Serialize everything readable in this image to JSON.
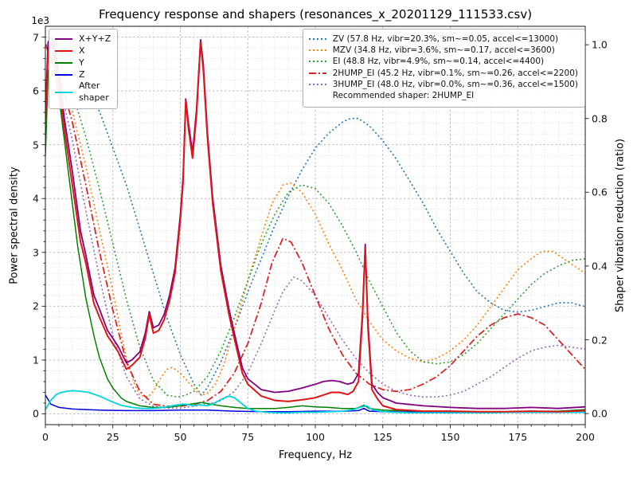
{
  "title": "Frequency response and shapers (resonances_x_20201129_111533.csv)",
  "axes": {
    "x": {
      "label": "Frequency, Hz",
      "min": 0,
      "max": 200,
      "major_ticks": [
        0,
        25,
        50,
        75,
        100,
        125,
        150,
        175,
        200
      ],
      "minor_step": 5
    },
    "y_left": {
      "label": "Power spectral density",
      "offset_text": "1e3",
      "min": -0.2,
      "max": 7.2,
      "major_ticks": [
        "0",
        "1",
        "2",
        "3",
        "4",
        "5",
        "6",
        "7"
      ],
      "minor_step": 0.2
    },
    "y_right": {
      "label": "Shaper vibration reduction (ratio)",
      "min": -0.03,
      "max": 1.05,
      "major_ticks": [
        "0.0",
        "0.2",
        "0.4",
        "0.6",
        "0.8",
        "1.0"
      ]
    }
  },
  "legend_psd": {
    "items": [
      {
        "label": "X+Y+Z",
        "color": "#800080",
        "style": "solid"
      },
      {
        "label": "X",
        "color": "#e01515",
        "style": "solid"
      },
      {
        "label": "Y",
        "color": "#008000",
        "style": "solid"
      },
      {
        "label": "Z",
        "color": "#0000e0",
        "style": "solid"
      },
      {
        "label": "After\nshaper",
        "color": "#00d4dc",
        "style": "solid"
      }
    ]
  },
  "legend_shapers": {
    "items": [
      {
        "label": "ZV (57.8 Hz, vibr=20.3%, sm~=0.05, accel<=13000)",
        "color": "#1f77b4",
        "style": "dotted"
      },
      {
        "label": "MZV (34.8 Hz, vibr=3.6%, sm~=0.17, accel<=3600)",
        "color": "#ff7f0e",
        "style": "dotted"
      },
      {
        "label": "EI (48.8 Hz, vibr=4.9%, sm~=0.14, accel<=4400)",
        "color": "#2ca02c",
        "style": "dotted"
      },
      {
        "label": "2HUMP_EI (45.2 Hz, vibr=0.1%, sm~=0.26, accel<=2200)",
        "color": "#d62728",
        "style": "dashdot"
      },
      {
        "label": "3HUMP_EI (48.0 Hz, vibr=0.0%, sm~=0.36, accel<=1500)",
        "color": "#9467bd",
        "style": "dotted"
      }
    ],
    "note": "Recommended shaper: 2HUMP_EI"
  },
  "chart_data": {
    "type": "line",
    "title": "Frequency response and shapers (resonances_x_20201129_111533.csv)",
    "xlabel": "Frequency, Hz",
    "ylabel_left": "Power spectral density (1e3)",
    "ylabel_right": "Shaper vibration reduction (ratio)",
    "xlim": [
      0,
      200
    ],
    "ylim_left": [
      -0.2,
      7.2
    ],
    "ylim_right": [
      -0.03,
      1.05
    ],
    "grid": "major+minor",
    "series": [
      {
        "name": "3HUMP_EI",
        "axis": "right",
        "color": "#9467bd",
        "style": "dotted",
        "width": 1.6,
        "x": [
          0,
          5,
          10,
          15,
          20,
          25,
          30,
          35,
          40,
          45,
          50,
          55,
          60,
          65,
          70,
          75,
          80,
          85,
          88,
          92,
          95,
          100,
          105,
          110,
          115,
          120,
          125,
          130,
          135,
          140,
          145,
          150,
          155,
          160,
          165,
          170,
          175,
          180,
          185,
          190,
          195,
          200
        ],
        "y": [
          1.0,
          0.9,
          0.74,
          0.55,
          0.37,
          0.21,
          0.1,
          0.04,
          0.02,
          0.015,
          0.015,
          0.02,
          0.025,
          0.035,
          0.06,
          0.11,
          0.19,
          0.28,
          0.33,
          0.37,
          0.36,
          0.32,
          0.26,
          0.2,
          0.15,
          0.11,
          0.08,
          0.06,
          0.05,
          0.045,
          0.045,
          0.05,
          0.06,
          0.08,
          0.1,
          0.125,
          0.15,
          0.17,
          0.18,
          0.185,
          0.18,
          0.175
        ]
      },
      {
        "name": "ZV",
        "axis": "right",
        "color": "#1f77b4",
        "style": "dotted",
        "width": 1.6,
        "x": [
          0,
          5,
          10,
          15,
          20,
          25,
          30,
          35,
          40,
          45,
          50,
          55,
          57.8,
          60,
          65,
          70,
          75,
          80,
          85,
          90,
          95,
          100,
          105,
          110,
          113,
          116,
          120,
          125,
          130,
          135,
          140,
          145,
          150,
          155,
          160,
          165,
          170,
          175,
          180,
          185,
          190,
          195,
          200
        ],
        "y": [
          1.0,
          0.99,
          0.95,
          0.89,
          0.82,
          0.72,
          0.62,
          0.5,
          0.38,
          0.26,
          0.16,
          0.08,
          0.05,
          0.07,
          0.14,
          0.23,
          0.33,
          0.42,
          0.51,
          0.59,
          0.66,
          0.72,
          0.76,
          0.79,
          0.8,
          0.8,
          0.78,
          0.74,
          0.69,
          0.63,
          0.57,
          0.5,
          0.44,
          0.38,
          0.33,
          0.3,
          0.28,
          0.275,
          0.28,
          0.29,
          0.3,
          0.3,
          0.29
        ]
      },
      {
        "name": "MZV",
        "axis": "right",
        "color": "#ff7f0e",
        "style": "dotted",
        "width": 1.6,
        "x": [
          0,
          5,
          10,
          15,
          20,
          25,
          28,
          30,
          33,
          35,
          38,
          40,
          43,
          45,
          47,
          50,
          53,
          56,
          58,
          60,
          63,
          66,
          70,
          75,
          80,
          84,
          88,
          91,
          95,
          100,
          105,
          110,
          115,
          120,
          125,
          130,
          135,
          140,
          145,
          150,
          155,
          160,
          165,
          170,
          175,
          180,
          184,
          188,
          192,
          196,
          200
        ],
        "y": [
          1.0,
          0.93,
          0.82,
          0.67,
          0.5,
          0.33,
          0.22,
          0.15,
          0.08,
          0.05,
          0.045,
          0.06,
          0.1,
          0.12,
          0.125,
          0.11,
          0.085,
          0.06,
          0.05,
          0.055,
          0.08,
          0.13,
          0.23,
          0.36,
          0.48,
          0.57,
          0.62,
          0.625,
          0.6,
          0.54,
          0.46,
          0.39,
          0.31,
          0.25,
          0.2,
          0.17,
          0.15,
          0.14,
          0.15,
          0.17,
          0.2,
          0.24,
          0.29,
          0.34,
          0.39,
          0.42,
          0.44,
          0.44,
          0.42,
          0.4,
          0.38
        ]
      },
      {
        "name": "EI",
        "axis": "right",
        "color": "#2ca02c",
        "style": "dotted",
        "width": 1.6,
        "x": [
          0,
          5,
          10,
          15,
          20,
          25,
          30,
          35,
          40,
          45,
          49,
          52,
          55,
          60,
          65,
          70,
          75,
          80,
          85,
          90,
          95,
          100,
          105,
          110,
          115,
          120,
          125,
          130,
          135,
          140,
          145,
          150,
          155,
          160,
          165,
          170,
          175,
          180,
          185,
          190,
          195,
          200
        ],
        "y": [
          1.0,
          0.95,
          0.87,
          0.75,
          0.61,
          0.46,
          0.31,
          0.18,
          0.09,
          0.05,
          0.045,
          0.05,
          0.06,
          0.1,
          0.17,
          0.26,
          0.36,
          0.46,
          0.54,
          0.6,
          0.62,
          0.61,
          0.57,
          0.51,
          0.44,
          0.36,
          0.29,
          0.22,
          0.17,
          0.14,
          0.135,
          0.14,
          0.16,
          0.19,
          0.23,
          0.27,
          0.31,
          0.35,
          0.38,
          0.4,
          0.415,
          0.42
        ]
      },
      {
        "name": "2HUMP_EI",
        "axis": "right",
        "color": "#d62728",
        "style": "dashdot",
        "width": 1.8,
        "x": [
          0,
          5,
          10,
          15,
          20,
          25,
          30,
          35,
          40,
          45,
          50,
          55,
          60,
          65,
          70,
          75,
          80,
          84,
          88,
          91,
          95,
          100,
          105,
          110,
          115,
          120,
          125,
          130,
          135,
          140,
          145,
          150,
          155,
          160,
          165,
          170,
          175,
          180,
          185,
          190,
          195,
          200
        ],
        "y": [
          1.0,
          0.92,
          0.79,
          0.62,
          0.44,
          0.28,
          0.14,
          0.06,
          0.025,
          0.02,
          0.02,
          0.025,
          0.035,
          0.06,
          0.11,
          0.19,
          0.3,
          0.41,
          0.475,
          0.465,
          0.41,
          0.32,
          0.23,
          0.16,
          0.11,
          0.08,
          0.065,
          0.06,
          0.065,
          0.08,
          0.1,
          0.13,
          0.17,
          0.21,
          0.24,
          0.26,
          0.27,
          0.26,
          0.24,
          0.2,
          0.16,
          0.12
        ]
      },
      {
        "name": "X+Y+Z",
        "axis": "left",
        "color": "#800080",
        "style": "solid",
        "width": 1.8,
        "x": [
          0,
          1,
          2,
          3,
          5,
          7,
          10,
          13,
          15,
          18,
          20,
          23,
          25,
          27,
          30,
          32,
          35,
          37,
          38.5,
          40,
          42,
          44,
          46,
          48,
          50,
          51,
          52,
          53,
          54.5,
          56,
          57.5,
          58.5,
          60,
          62,
          65,
          68,
          70,
          73,
          75,
          80,
          85,
          90,
          95,
          100,
          103,
          106,
          109,
          112,
          114,
          116,
          117.5,
          118.5,
          119.5,
          121,
          123,
          125,
          130,
          140,
          150,
          160,
          170,
          180,
          190,
          200
        ],
        "y": [
          5.6,
          6.9,
          7.0,
          6.9,
          6.3,
          5.5,
          4.5,
          3.4,
          2.95,
          2.2,
          1.95,
          1.55,
          1.4,
          1.25,
          0.95,
          1.0,
          1.15,
          1.5,
          1.9,
          1.6,
          1.65,
          1.85,
          2.2,
          2.7,
          3.7,
          4.4,
          5.85,
          5.4,
          4.85,
          5.65,
          6.95,
          6.5,
          5.25,
          4.0,
          2.75,
          1.95,
          1.5,
          0.85,
          0.65,
          0.45,
          0.4,
          0.42,
          0.48,
          0.55,
          0.6,
          0.62,
          0.6,
          0.55,
          0.58,
          0.75,
          1.9,
          3.15,
          1.7,
          0.55,
          0.4,
          0.3,
          0.2,
          0.15,
          0.12,
          0.1,
          0.1,
          0.12,
          0.1,
          0.13
        ]
      },
      {
        "name": "Y",
        "axis": "left",
        "color": "#008000",
        "style": "solid",
        "width": 1.5,
        "x": [
          0,
          1,
          2,
          3,
          5,
          8,
          10,
          12,
          15,
          18,
          20,
          23,
          25,
          28,
          30,
          35,
          40,
          45,
          50,
          55,
          58,
          60,
          65,
          70,
          75,
          80,
          85,
          90,
          95,
          100,
          105,
          110,
          115,
          118,
          120,
          125,
          130,
          140,
          150,
          160,
          170,
          180,
          190,
          200
        ],
        "y": [
          4.8,
          6.3,
          6.6,
          6.5,
          5.9,
          4.7,
          3.9,
          3.1,
          2.15,
          1.45,
          1.05,
          0.65,
          0.48,
          0.3,
          0.23,
          0.15,
          0.12,
          0.12,
          0.15,
          0.19,
          0.21,
          0.19,
          0.15,
          0.12,
          0.1,
          0.1,
          0.1,
          0.12,
          0.15,
          0.13,
          0.12,
          0.1,
          0.1,
          0.16,
          0.1,
          0.07,
          0.06,
          0.05,
          0.05,
          0.04,
          0.04,
          0.05,
          0.05,
          0.08
        ]
      },
      {
        "name": "Z",
        "axis": "left",
        "color": "#0000e0",
        "style": "solid",
        "width": 1.5,
        "x": [
          0,
          2,
          5,
          10,
          15,
          20,
          30,
          40,
          50,
          60,
          70,
          80,
          90,
          100,
          110,
          116,
          118,
          120,
          125,
          140,
          160,
          180,
          200
        ],
        "y": [
          0.35,
          0.18,
          0.12,
          0.09,
          0.08,
          0.07,
          0.06,
          0.06,
          0.07,
          0.07,
          0.05,
          0.04,
          0.04,
          0.05,
          0.05,
          0.06,
          0.1,
          0.05,
          0.04,
          0.03,
          0.03,
          0.03,
          0.03
        ]
      },
      {
        "name": "After shaper",
        "axis": "left",
        "color": "#00d4dc",
        "style": "solid",
        "width": 1.8,
        "x": [
          0,
          2,
          4,
          6,
          8,
          10,
          13,
          16,
          20,
          24,
          28,
          32,
          36,
          40,
          44,
          48,
          51,
          53,
          55,
          57,
          60,
          62,
          64,
          66,
          68,
          70,
          72,
          75,
          78,
          82,
          86,
          90,
          95,
          100,
          105,
          110,
          114,
          117,
          119,
          121,
          124,
          128,
          135,
          145,
          155,
          165,
          175,
          185,
          195,
          200
        ],
        "y": [
          0.08,
          0.25,
          0.36,
          0.4,
          0.42,
          0.43,
          0.42,
          0.4,
          0.33,
          0.24,
          0.16,
          0.12,
          0.1,
          0.1,
          0.12,
          0.16,
          0.18,
          0.17,
          0.15,
          0.17,
          0.15,
          0.18,
          0.24,
          0.29,
          0.33,
          0.3,
          0.22,
          0.1,
          0.05,
          0.03,
          0.02,
          0.02,
          0.03,
          0.03,
          0.04,
          0.05,
          0.08,
          0.13,
          0.15,
          0.08,
          0.05,
          0.03,
          0.02,
          0.02,
          0.02,
          0.02,
          0.03,
          0.03,
          0.03,
          0.03
        ]
      },
      {
        "name": "X",
        "axis": "left",
        "color": "#e01515",
        "style": "solid",
        "width": 2.0,
        "x": [
          0,
          1,
          2,
          3,
          5,
          7,
          10,
          13,
          15,
          18,
          20,
          23,
          25,
          27,
          30,
          32,
          35,
          37,
          38.5,
          40,
          42,
          44,
          46,
          48,
          50,
          51,
          52,
          53,
          54.5,
          56,
          57.5,
          58.5,
          60,
          62,
          65,
          68,
          70,
          73,
          75,
          80,
          85,
          90,
          95,
          100,
          103,
          106,
          109,
          112,
          114,
          116,
          117.5,
          118.5,
          119.5,
          121,
          123,
          125,
          130,
          140,
          150,
          160,
          170,
          180,
          190,
          200
        ],
        "y": [
          5.4,
          6.7,
          6.9,
          6.75,
          6.1,
          5.3,
          4.25,
          3.2,
          2.8,
          2.05,
          1.8,
          1.45,
          1.3,
          1.15,
          0.83,
          0.9,
          1.05,
          1.4,
          1.85,
          1.5,
          1.55,
          1.75,
          2.1,
          2.6,
          3.6,
          4.3,
          5.8,
          5.3,
          4.75,
          5.55,
          6.9,
          6.4,
          5.15,
          3.9,
          2.65,
          1.85,
          1.4,
          0.75,
          0.55,
          0.33,
          0.25,
          0.23,
          0.26,
          0.3,
          0.35,
          0.4,
          0.4,
          0.36,
          0.42,
          0.6,
          1.8,
          3.08,
          1.6,
          0.45,
          0.28,
          0.15,
          0.08,
          0.05,
          0.05,
          0.04,
          0.04,
          0.05,
          0.04,
          0.06
        ]
      }
    ]
  }
}
